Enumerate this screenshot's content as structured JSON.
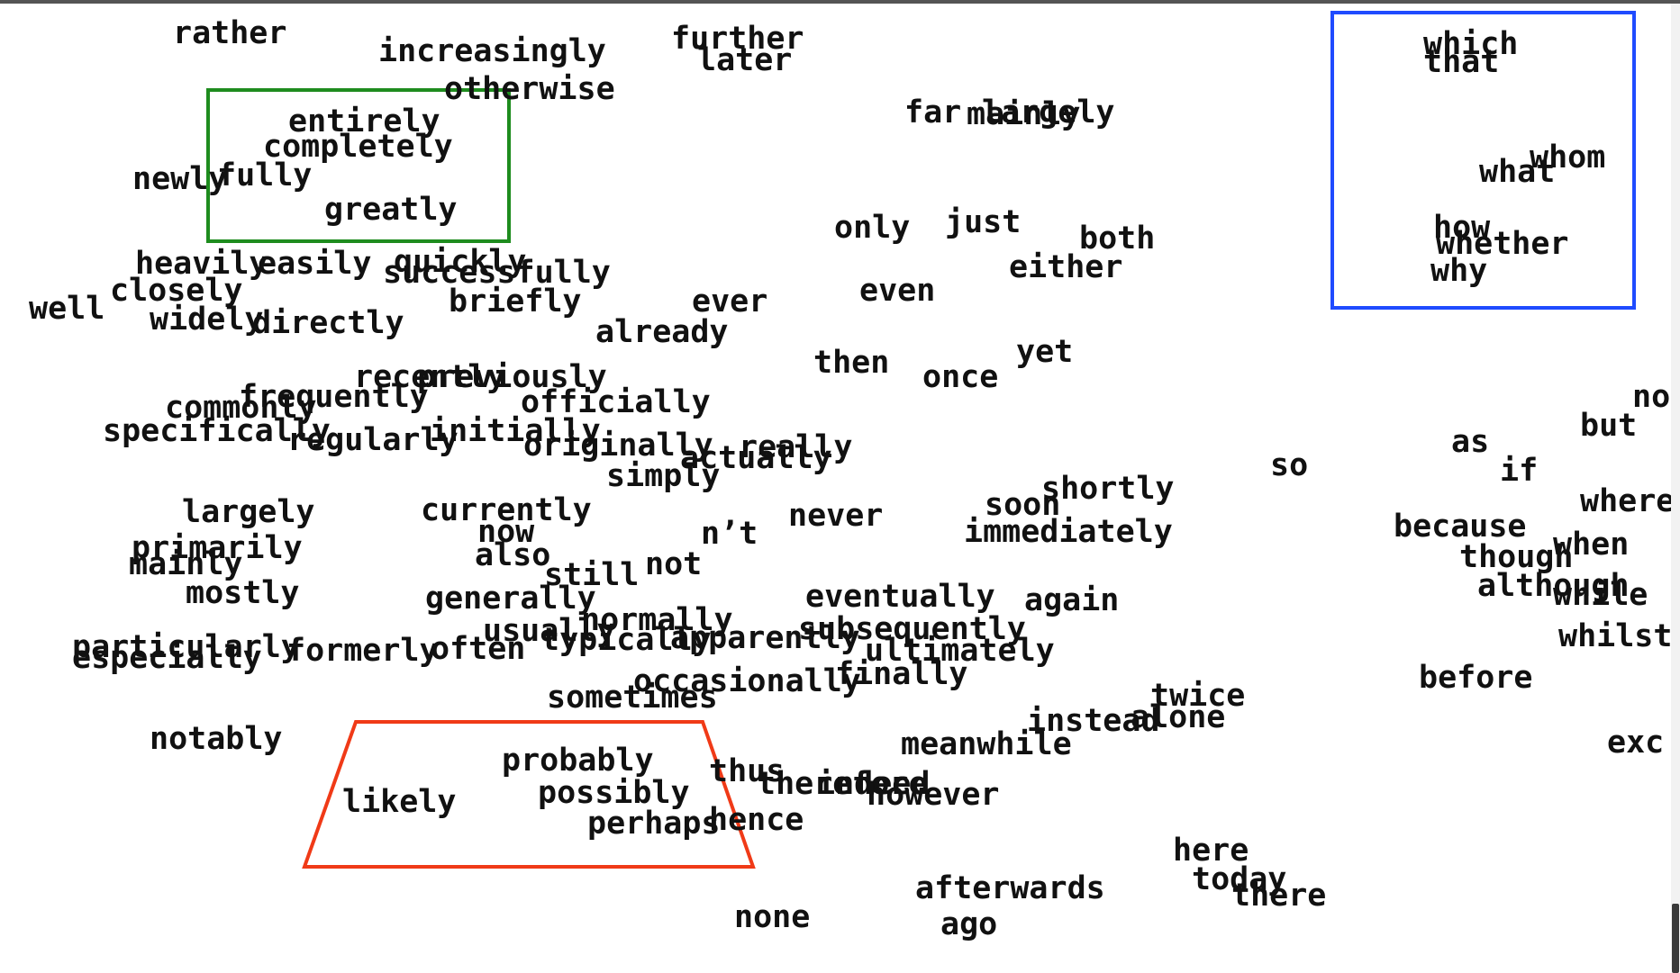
{
  "colors": {
    "green_box": "#1e8c1e",
    "blue_box": "#1f4bff",
    "red_box": "#f03a17",
    "text": "#111111",
    "topbar": "#555555"
  },
  "words": {
    "rather": "rather",
    "increasingly": "increasingly",
    "further": "further",
    "later": "later",
    "otherwise": "otherwise",
    "entirely": "entirely",
    "completely": "completely",
    "newly": "newly",
    "fully": "fully",
    "greatly": "greatly",
    "far": "far",
    "mainly2": "mainly",
    "largely2": "largely",
    "only": "only",
    "just": "just",
    "both": "both",
    "either": "either",
    "even": "even",
    "heavily": "heavily",
    "easily": "easily",
    "quickly": "quickly",
    "successfully": "successfully",
    "closely": "closely",
    "well": "well",
    "widely": "widely",
    "directly": "directly",
    "briefly": "briefly",
    "ever": "ever",
    "already": "already",
    "then": "then",
    "once": "once",
    "yet": "yet",
    "recently": "recently",
    "previously": "previously",
    "frequently": "frequently",
    "commonly": "commonly",
    "officially": "officially",
    "specifically": "specifically",
    "regularly": "regularly",
    "initially": "initially",
    "originally": "originally",
    "eventually2": "actually",
    "really": "really",
    "simply": "simply",
    "largely": "largely",
    "currently": "currently",
    "now": "now",
    "never": "never",
    "nt": "n’t",
    "soon": "soon",
    "shortly": "shortly",
    "immediately": "immediately",
    "primarily": "primarily",
    "mainly": "mainly",
    "also": "also",
    "still": "still",
    "not": "not",
    "mostly": "mostly",
    "generally": "generally",
    "eventually": "eventually",
    "again": "again",
    "usually": "usually",
    "normally": "normally",
    "typically": "typically",
    "apparently": "apparently",
    "subsequently": "subsequently",
    "ultimately": "ultimately",
    "particularly": "particularly",
    "especially": "especially",
    "formerly": "formerly",
    "often": "often",
    "sometimes": "sometimes",
    "occasionally": "occasionally",
    "finally": "finally",
    "twice": "twice",
    "instead": "instead",
    "alone": "alone",
    "notably": "notably",
    "meanwhile": "meanwhile",
    "probably": "probably",
    "thus": "thus",
    "therefore": "therefore",
    "indeed": "indeed",
    "however": "however",
    "likely": "likely",
    "possibly": "possibly",
    "perhaps": "perhaps",
    "hence": "hence",
    "here": "here",
    "today": "today",
    "there": "there",
    "afterwards": "afterwards",
    "none": "none",
    "ago": "ago",
    "which": "which",
    "that": "that",
    "whom": "whom",
    "what": "what",
    "how": "how",
    "whether": "whether",
    "why": "why",
    "so": "so",
    "as": "as",
    "but": "but",
    "if": "if",
    "nor": "no",
    "where": "where",
    "because": "because",
    "when": "when",
    "though": "though",
    "although": "although",
    "while": "while",
    "whilst": "whilst",
    "before": "before",
    "except": "exc"
  }
}
